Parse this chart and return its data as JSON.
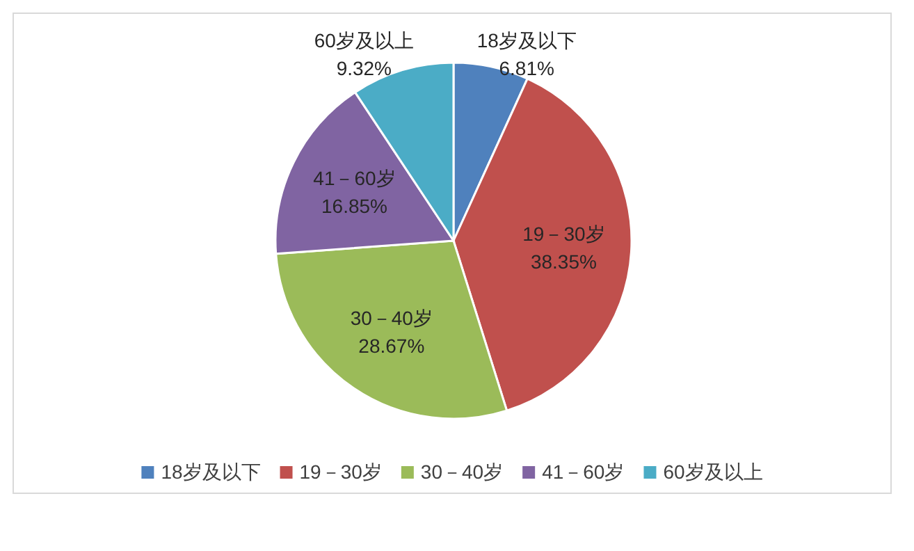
{
  "chart_data": {
    "type": "pie",
    "categories": [
      "18岁及以下",
      "19－30岁",
      "30－40岁",
      "41－60岁",
      "60岁及以上"
    ],
    "values": [
      6.81,
      38.35,
      28.67,
      16.85,
      9.32
    ],
    "value_labels": [
      "6.81%",
      "38.35%",
      "28.67%",
      "16.85%",
      "9.32%"
    ],
    "colors": [
      "#4f81bd",
      "#c0504d",
      "#9bbb59",
      "#8064a2",
      "#4bacc6"
    ],
    "legend": "bottom"
  }
}
